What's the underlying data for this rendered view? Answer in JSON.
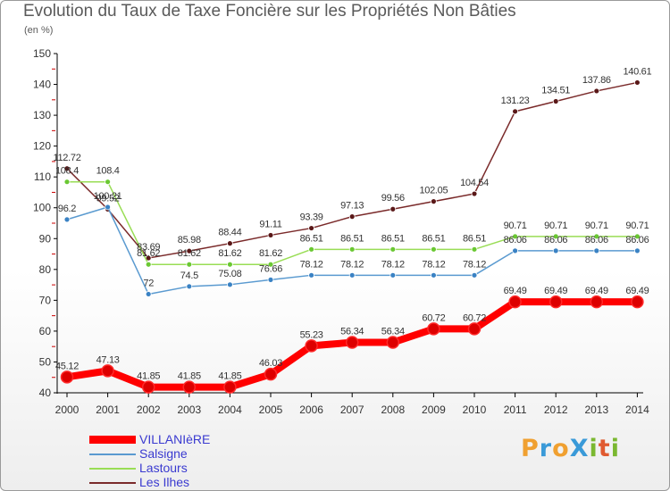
{
  "header": {
    "title": "Evolution du Taux de Taxe Foncière sur les Propriétés Non Bâties",
    "unit": "(en %)"
  },
  "logo": {
    "text": "ProXiti",
    "letters": [
      "P",
      "r",
      "o",
      "X",
      "i",
      "t",
      "i"
    ],
    "colors": [
      "#f0a030",
      "#3a9ad8",
      "#f0a030",
      "#3a9ad8",
      "#7ab830",
      "#e05a30",
      "#7ab830"
    ]
  },
  "chart_data": {
    "type": "line",
    "title": "Evolution du Taux de Taxe Foncière sur les Propriétés Non Bâties",
    "ylabel": "(en %)",
    "xlabel": "",
    "ylim": [
      40,
      150
    ],
    "yticks": [
      40,
      50,
      60,
      70,
      80,
      90,
      100,
      110,
      120,
      130,
      140,
      150
    ],
    "grid": false,
    "legend": "bottom-left",
    "x": [
      "2000",
      "2001",
      "2002",
      "2003",
      "2004",
      "2005",
      "2006",
      "2007",
      "2008",
      "2009",
      "2010",
      "2011",
      "2012",
      "2013",
      "2014"
    ],
    "series": [
      {
        "name": "VILLANIèRE",
        "color": "#ff0000",
        "marker": "#dd0000",
        "width": "thick",
        "values": [
          45.12,
          47.13,
          41.85,
          41.85,
          41.85,
          46.03,
          55.23,
          56.34,
          56.34,
          60.72,
          60.72,
          69.49,
          69.49,
          69.49,
          69.49
        ],
        "labels": [
          "45.12",
          "47.13",
          "41.85",
          "41.85",
          "41.85",
          "46.03",
          "55.23",
          "56.34",
          "56.34",
          "60.72",
          "60.72",
          "69.49",
          "69.49",
          "69.49",
          "69.49"
        ]
      },
      {
        "name": "Salsigne",
        "color": "#5a9ad0",
        "marker": "#3a82c4",
        "width": "thin",
        "values": [
          96.2,
          100.21,
          72,
          74.5,
          75.08,
          76.66,
          78.12,
          78.12,
          78.12,
          78.12,
          78.12,
          86.06,
          86.06,
          86.06,
          86.06
        ],
        "labels": [
          "96.2",
          "100.21",
          "72",
          "74.5",
          "75.08",
          "76.66",
          "78.12",
          "78.12",
          "78.12",
          "78.12",
          "78.12",
          "86.06",
          "86.06",
          "86.06",
          "86.06"
        ]
      },
      {
        "name": "Lastours",
        "color": "#99dd55",
        "marker": "#6ac832",
        "width": "thin",
        "values": [
          108.4,
          108.4,
          81.62,
          81.62,
          81.62,
          81.62,
          86.51,
          86.51,
          86.51,
          86.51,
          86.51,
          90.71,
          90.71,
          90.71,
          90.71
        ],
        "labels": [
          "108.4",
          "108.4",
          "81.62",
          "81.62",
          "81.62",
          "81.62",
          "86.51",
          "86.51",
          "86.51",
          "86.51",
          "86.51",
          "90.71",
          "90.71",
          "90.71",
          "90.71"
        ]
      },
      {
        "name": "Les Ilhes",
        "color": "#7a2a2a",
        "marker": "#5a1818",
        "width": "thin",
        "values": [
          112.72,
          99.52,
          83.69,
          85.98,
          88.44,
          91.11,
          93.39,
          97.13,
          99.56,
          102.05,
          104.54,
          131.23,
          134.51,
          137.86,
          140.61
        ],
        "labels": [
          "112.72",
          "99.52",
          "83.69",
          "85.98",
          "88.44",
          "91.11",
          "93.39",
          "97.13",
          "99.56",
          "102.05",
          "104.54",
          "131.23",
          "134.51",
          "137.86",
          "140.61"
        ]
      }
    ]
  }
}
